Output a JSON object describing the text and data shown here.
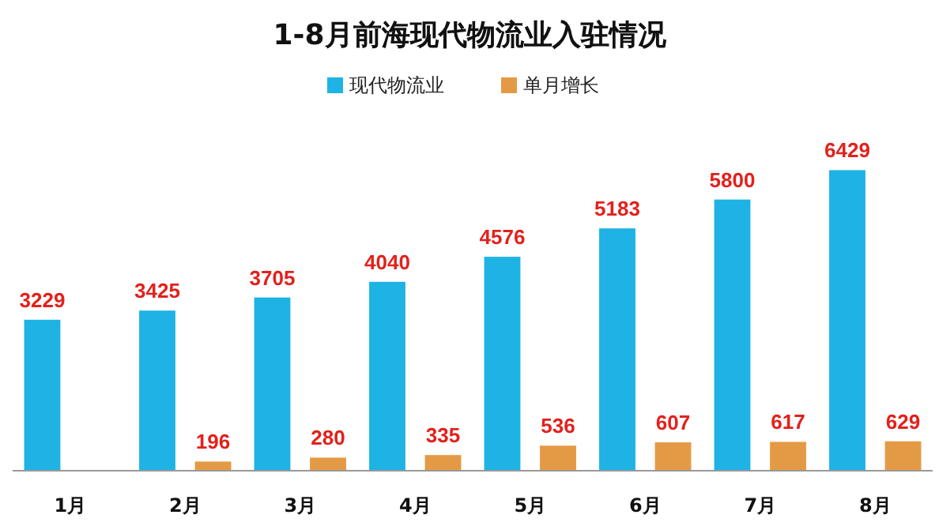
{
  "chart_data": {
    "type": "bar",
    "title": "1-8月前海现代物流业入驻情况",
    "categories": [
      "1月",
      "2月",
      "3月",
      "4月",
      "5月",
      "6月",
      "7月",
      "8月"
    ],
    "series": [
      {
        "name": "现代物流业",
        "color": "#1eb3e4",
        "values": [
          3229,
          3425,
          3705,
          4040,
          4576,
          5183,
          5800,
          6429
        ]
      },
      {
        "name": "单月增长",
        "color": "#e49a45",
        "values": [
          null,
          196,
          280,
          335,
          536,
          607,
          617,
          629
        ]
      }
    ],
    "data_labels": true,
    "legend": "top"
  }
}
